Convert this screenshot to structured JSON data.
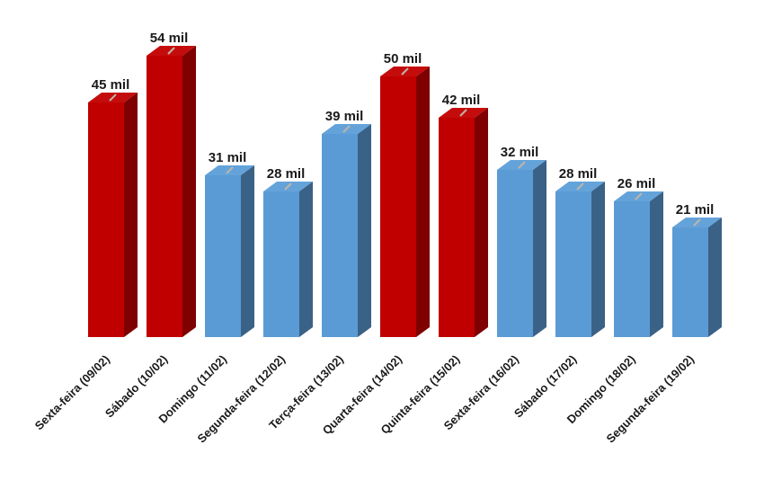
{
  "chart_data": {
    "type": "bar",
    "style": "3d-column",
    "title": "",
    "xlabel": "",
    "ylabel": "",
    "unit": "mil",
    "categories": [
      "Sexta-feira (09/02)",
      "Sábado (10/02)",
      "Domingo (11/02)",
      "Segunda-feira (12/02)",
      "Terça-feira (13/02)",
      "Quarta-feira (14/02)",
      "Quinta-feira (15/02)",
      "Sexta-feira (16/02)",
      "Sábado (17/02)",
      "Domingo (18/02)",
      "Segunda-feira (19/02)"
    ],
    "values": [
      45,
      54,
      31,
      28,
      39,
      50,
      42,
      32,
      28,
      26,
      21
    ],
    "value_labels": [
      "45 mil",
      "54 mil",
      "31 mil",
      "28 mil",
      "39 mil",
      "50 mil",
      "42 mil",
      "32 mil",
      "28 mil",
      "26 mil",
      "21 mil"
    ],
    "bar_colors": [
      "red",
      "red",
      "blue",
      "blue",
      "blue",
      "red",
      "red",
      "blue",
      "blue",
      "blue",
      "blue"
    ],
    "palette": {
      "red": {
        "front": "#C00000",
        "top": "#C50C0C",
        "side": "#7F0000"
      },
      "blue": {
        "front": "#5B9BD5",
        "top": "#64A3DA",
        "side": "#3A6186"
      }
    },
    "top_tick_color": "#BFB5A8",
    "value_label_color": "#1A1A1A",
    "axis_label_color": "#1A1A1A",
    "ylim": [
      0,
      60
    ],
    "grid": false,
    "legend": false,
    "axis_lines": false
  }
}
